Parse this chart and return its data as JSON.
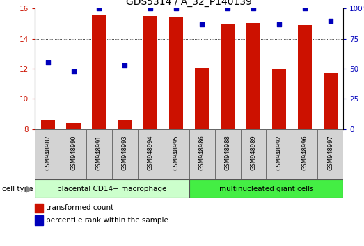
{
  "title": "GDS5314 / A_32_P140139",
  "samples": [
    "GSM948987",
    "GSM948990",
    "GSM948991",
    "GSM948993",
    "GSM948994",
    "GSM948995",
    "GSM948986",
    "GSM948988",
    "GSM948989",
    "GSM948992",
    "GSM948996",
    "GSM948997"
  ],
  "transformed_count": [
    8.6,
    8.4,
    15.55,
    8.6,
    15.5,
    15.4,
    12.05,
    14.95,
    15.05,
    12.0,
    14.9,
    11.75
  ],
  "percentile_rank": [
    55,
    48,
    100,
    53,
    100,
    100,
    87,
    100,
    100,
    87,
    100,
    90
  ],
  "group1_count": 6,
  "group2_count": 6,
  "group1_label": "placental CD14+ macrophage",
  "group2_label": "multinucleated giant cells",
  "cell_type_label": "cell type",
  "ylim_left": [
    8,
    16
  ],
  "ylim_right": [
    0,
    100
  ],
  "yticks_left": [
    8,
    10,
    12,
    14,
    16
  ],
  "yticks_right": [
    0,
    25,
    50,
    75,
    100
  ],
  "bar_color": "#cc1100",
  "dot_color": "#0000bb",
  "bar_width": 0.55,
  "group1_bg": "#ccffcc",
  "group2_bg": "#44ee44",
  "legend_bar_label": "transformed count",
  "legend_dot_label": "percentile rank within the sample",
  "title_fontsize": 10,
  "tick_fontsize": 7.5,
  "sample_fontsize": 6,
  "legend_fontsize": 7.5
}
